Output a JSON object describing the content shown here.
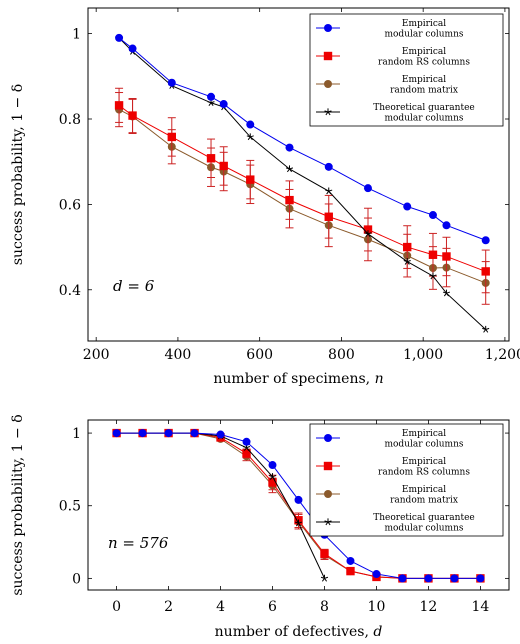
{
  "colors": {
    "modular": "#0000ee",
    "random_rs": "#ee0000",
    "random_matrix": "#8b5a2b",
    "theoretical": "#000000",
    "error_bar": "#cc2222"
  },
  "chart_data": [
    {
      "type": "line",
      "xlabel": "number of specimens, n",
      "ylabel": "success probability, 1 − δ",
      "xlim": [
        180,
        1210
      ],
      "ylim": [
        0.28,
        1.06
      ],
      "xticks": [
        200,
        400,
        600,
        800,
        1000,
        1200
      ],
      "xtick_labels": [
        "200",
        "400",
        "600",
        "800",
        "1,000",
        "1,200"
      ],
      "yticks": [
        0.4,
        0.6,
        0.8,
        1.0
      ],
      "ytick_labels": [
        "0.4",
        "0.6",
        "0.8",
        "1"
      ],
      "annotation": "d = 6",
      "legend_position": "top-right",
      "series": [
        {
          "key": "modular",
          "name": "Empirical modular columns",
          "legend_lines": [
            "Empirical",
            "modular columns"
          ],
          "marker": "circle",
          "x": [
            256,
            289,
            385,
            481,
            512,
            577,
            673,
            769,
            865,
            961,
            1024,
            1057,
            1153
          ],
          "y": [
            0.99,
            0.965,
            0.885,
            0.852,
            0.835,
            0.787,
            0.733,
            0.688,
            0.638,
            0.595,
            0.575,
            0.551,
            0.516
          ]
        },
        {
          "key": "random_rs",
          "name": "Empirical random RS columns",
          "legend_lines": [
            "Empirical",
            "random RS columns"
          ],
          "marker": "square",
          "x": [
            256,
            289,
            385,
            481,
            512,
            577,
            673,
            769,
            865,
            961,
            1024,
            1057,
            1153
          ],
          "y": [
            0.832,
            0.808,
            0.758,
            0.708,
            0.69,
            0.658,
            0.61,
            0.571,
            0.541,
            0.5,
            0.482,
            0.478,
            0.443
          ],
          "err": [
            0.04,
            0.04,
            0.045,
            0.045,
            0.045,
            0.045,
            0.045,
            0.05,
            0.05,
            0.05,
            0.05,
            0.045,
            0.05
          ]
        },
        {
          "key": "random_matrix",
          "name": "Empirical random matrix",
          "legend_lines": [
            "Empirical",
            "random matrix"
          ],
          "marker": "circle",
          "x": [
            256,
            289,
            385,
            481,
            512,
            577,
            673,
            769,
            865,
            961,
            1024,
            1057,
            1153
          ],
          "y": [
            0.822,
            0.806,
            0.735,
            0.687,
            0.677,
            0.647,
            0.59,
            0.551,
            0.518,
            0.48,
            0.451,
            0.452,
            0.416
          ],
          "err": [
            0.04,
            0.04,
            0.04,
            0.045,
            0.045,
            0.045,
            0.045,
            0.05,
            0.05,
            0.05,
            0.05,
            0.045,
            0.05
          ]
        },
        {
          "key": "theoretical",
          "name": "Theoretical guarantee modular columns",
          "legend_lines": [
            "Theoretical guarantee",
            "modular columns"
          ],
          "marker": "star",
          "x": [
            256,
            289,
            385,
            481,
            512,
            577,
            673,
            769,
            865,
            961,
            1024,
            1057,
            1153
          ],
          "y": [
            0.99,
            0.958,
            0.878,
            0.838,
            0.828,
            0.758,
            0.683,
            0.631,
            0.531,
            0.466,
            0.432,
            0.392,
            0.307
          ]
        }
      ]
    },
    {
      "type": "line",
      "xlabel": "number of defectives, d",
      "ylabel": "success probability, 1 − δ",
      "xlim": [
        -1.1,
        15.1
      ],
      "ylim": [
        -0.08,
        1.09
      ],
      "xticks": [
        0,
        2,
        4,
        6,
        8,
        10,
        12,
        14
      ],
      "xtick_labels": [
        "0",
        "2",
        "4",
        "6",
        "8",
        "10",
        "12",
        "14"
      ],
      "yticks": [
        0,
        0.5,
        1
      ],
      "ytick_labels": [
        "0",
        "0.5",
        "1"
      ],
      "annotation": "n = 576",
      "legend_position": "top-right",
      "series": [
        {
          "key": "modular",
          "name": "Empirical modular columns",
          "legend_lines": [
            "Empirical",
            "modular columns"
          ],
          "marker": "circle",
          "x": [
            0,
            1,
            2,
            3,
            4,
            5,
            6,
            7,
            8,
            9,
            10,
            11,
            12,
            13,
            14
          ],
          "y": [
            1,
            1,
            1,
            1,
            0.99,
            0.94,
            0.78,
            0.54,
            0.3,
            0.12,
            0.03,
            0,
            0,
            0,
            0
          ]
        },
        {
          "key": "random_rs",
          "name": "Empirical random RS columns",
          "legend_lines": [
            "Empirical",
            "random RS columns"
          ],
          "marker": "square",
          "x": [
            0,
            1,
            2,
            3,
            4,
            5,
            6,
            7,
            8,
            9,
            10,
            11,
            12,
            13,
            14
          ],
          "y": [
            1,
            1,
            1,
            1,
            0.97,
            0.86,
            0.66,
            0.4,
            0.17,
            0.05,
            0.01,
            0,
            0,
            0,
            0
          ],
          "err": [
            0,
            0,
            0,
            0,
            0.01,
            0.03,
            0.05,
            0.05,
            0.03,
            0.01,
            0,
            0,
            0,
            0,
            0
          ]
        },
        {
          "key": "random_matrix",
          "name": "Empirical random matrix",
          "legend_lines": [
            "Empirical",
            "random matrix"
          ],
          "marker": "circle",
          "x": [
            0,
            1,
            2,
            3,
            4,
            5,
            6,
            7,
            8,
            9,
            10,
            11,
            12,
            13,
            14
          ],
          "y": [
            1,
            1,
            1,
            1,
            0.96,
            0.84,
            0.64,
            0.39,
            0.16,
            0.05,
            0.01,
            0,
            0,
            0,
            0
          ],
          "err": [
            0,
            0,
            0,
            0,
            0.01,
            0.03,
            0.05,
            0.05,
            0.03,
            0.01,
            0,
            0,
            0,
            0,
            0
          ]
        },
        {
          "key": "theoretical",
          "name": "Theoretical guarantee modular columns",
          "legend_lines": [
            "Theoretical guarantee",
            "modular columns"
          ],
          "marker": "star",
          "x": [
            0,
            1,
            2,
            3,
            4,
            5,
            6,
            7,
            8
          ],
          "y": [
            1,
            1,
            1,
            1,
            0.98,
            0.9,
            0.7,
            0.38,
            0
          ]
        }
      ]
    }
  ]
}
